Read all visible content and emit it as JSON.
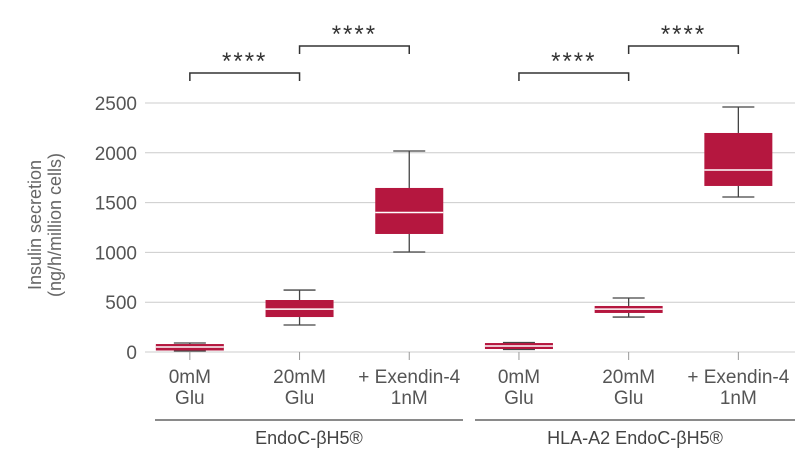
{
  "chart_data": {
    "type": "box",
    "y_label": "Insulin secretion\n(ng/h/million cells)",
    "categories": [
      "0mM\nGlu",
      "20mM\nGlu",
      "+ Exendin-4\n1nM",
      "0mM\nGlu",
      "20mM\nGlu",
      "+ Exendin-4\n1nM"
    ],
    "groups": [
      "EndoC-βH5®",
      "HLA-A2 EndoC-βH5®"
    ],
    "boxes": [
      {
        "min": 10,
        "q1": 15,
        "median": 50,
        "q3": 80,
        "max": 90
      },
      {
        "min": 271,
        "q1": 351,
        "median": 430,
        "q3": 522,
        "max": 622
      },
      {
        "min": 1004,
        "q1": 1185,
        "median": 1400,
        "q3": 1647,
        "max": 2018
      },
      {
        "min": 25,
        "q1": 30,
        "median": 60,
        "q3": 90,
        "max": 95
      },
      {
        "min": 351,
        "q1": 392,
        "median": 430,
        "q3": 462,
        "max": 542
      },
      {
        "min": 1556,
        "q1": 1667,
        "median": 1827,
        "q3": 2199,
        "max": 2460
      }
    ],
    "color": "#b5173f",
    "annotations": [
      "****",
      "****",
      "****",
      "****"
    ],
    "ylim": [
      0,
      2500
    ],
    "yticks": [
      0,
      500,
      1000,
      1500,
      2000,
      2500
    ],
    "grid": true
  }
}
